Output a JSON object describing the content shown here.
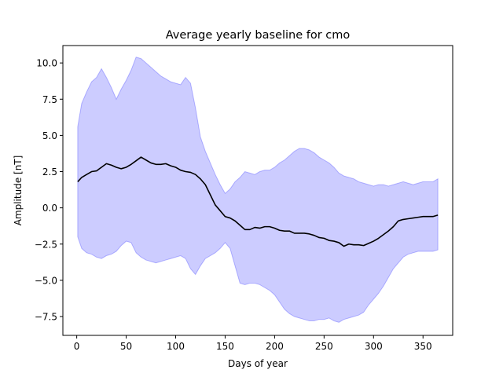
{
  "chart_data": {
    "type": "line",
    "title": "Average yearly baseline for cmo",
    "xlabel": "Days of year",
    "ylabel": "Amplitude [nT]",
    "xlim": [
      -14,
      380
    ],
    "ylim": [
      -8.8,
      11.2
    ],
    "xticks": [
      0,
      50,
      100,
      150,
      200,
      250,
      300,
      350
    ],
    "yticks": [
      -7.5,
      -5.0,
      -2.5,
      0.0,
      2.5,
      5.0,
      7.5,
      10.0
    ],
    "ytick_labels": [
      "−7.5",
      "−5.0",
      "−2.5",
      "0.0",
      "2.5",
      "5.0",
      "7.5",
      "10.0"
    ],
    "grid": false,
    "series": [
      {
        "kind": "mean-line",
        "color": "#000000",
        "x": [
          1,
          5,
          10,
          15,
          20,
          25,
          30,
          35,
          40,
          45,
          50,
          55,
          60,
          65,
          70,
          75,
          80,
          85,
          90,
          95,
          100,
          105,
          110,
          115,
          120,
          125,
          130,
          135,
          140,
          145,
          150,
          155,
          160,
          165,
          170,
          175,
          180,
          185,
          190,
          195,
          200,
          205,
          210,
          215,
          220,
          225,
          230,
          235,
          240,
          245,
          250,
          255,
          260,
          265,
          270,
          275,
          280,
          285,
          290,
          295,
          300,
          305,
          310,
          315,
          320,
          325,
          330,
          335,
          340,
          345,
          350,
          355,
          360,
          365
        ],
        "y": [
          1.8,
          2.1,
          2.3,
          2.5,
          2.55,
          2.8,
          3.05,
          2.95,
          2.8,
          2.7,
          2.8,
          3.0,
          3.25,
          3.5,
          3.3,
          3.1,
          3.0,
          3.0,
          3.05,
          2.9,
          2.8,
          2.6,
          2.5,
          2.45,
          2.3,
          2.0,
          1.6,
          0.9,
          0.2,
          -0.2,
          -0.6,
          -0.7,
          -0.9,
          -1.2,
          -1.5,
          -1.5,
          -1.35,
          -1.4,
          -1.3,
          -1.3,
          -1.4,
          -1.55,
          -1.6,
          -1.6,
          -1.75,
          -1.75,
          -1.75,
          -1.8,
          -1.9,
          -2.05,
          -2.1,
          -2.25,
          -2.3,
          -2.4,
          -2.65,
          -2.5,
          -2.55,
          -2.55,
          -2.6,
          -2.45,
          -2.3,
          -2.1,
          -1.85,
          -1.6,
          -1.3,
          -0.9,
          -0.8,
          -0.75,
          -0.7,
          -0.65,
          -0.6,
          -0.6,
          -0.6,
          -0.5
        ]
      },
      {
        "kind": "band",
        "color": "#0000ff",
        "fill_alpha": 0.2,
        "x": [
          1,
          5,
          10,
          15,
          20,
          25,
          30,
          35,
          40,
          45,
          50,
          55,
          60,
          65,
          70,
          75,
          80,
          85,
          90,
          95,
          100,
          105,
          110,
          115,
          120,
          125,
          130,
          135,
          140,
          145,
          150,
          155,
          160,
          165,
          170,
          175,
          180,
          185,
          190,
          195,
          200,
          205,
          210,
          215,
          220,
          225,
          230,
          235,
          240,
          245,
          250,
          255,
          260,
          265,
          270,
          275,
          280,
          285,
          290,
          295,
          300,
          305,
          310,
          315,
          320,
          325,
          330,
          335,
          340,
          345,
          350,
          355,
          360,
          365
        ],
        "upper": [
          5.6,
          7.2,
          8.0,
          8.7,
          9.0,
          9.6,
          9.0,
          8.3,
          7.5,
          8.2,
          8.8,
          9.5,
          10.4,
          10.3,
          10.0,
          9.7,
          9.4,
          9.1,
          8.9,
          8.7,
          8.6,
          8.5,
          9.0,
          8.6,
          6.9,
          4.9,
          3.9,
          3.1,
          2.3,
          1.6,
          1.0,
          1.3,
          1.8,
          2.1,
          2.5,
          2.4,
          2.3,
          2.5,
          2.6,
          2.6,
          2.8,
          3.1,
          3.3,
          3.6,
          3.9,
          4.1,
          4.1,
          4.0,
          3.8,
          3.5,
          3.3,
          3.1,
          2.8,
          2.4,
          2.2,
          2.1,
          2.0,
          1.8,
          1.7,
          1.6,
          1.5,
          1.6,
          1.6,
          1.5,
          1.6,
          1.7,
          1.8,
          1.7,
          1.6,
          1.7,
          1.8,
          1.8,
          1.8,
          2.0
        ],
        "lower": [
          -2.0,
          -2.8,
          -3.1,
          -3.2,
          -3.4,
          -3.5,
          -3.3,
          -3.2,
          -3.0,
          -2.6,
          -2.3,
          -2.4,
          -3.1,
          -3.4,
          -3.6,
          -3.7,
          -3.8,
          -3.7,
          -3.6,
          -3.5,
          -3.4,
          -3.3,
          -3.5,
          -4.2,
          -4.6,
          -4.0,
          -3.5,
          -3.3,
          -3.1,
          -2.8,
          -2.4,
          -2.8,
          -4.0,
          -5.2,
          -5.3,
          -5.2,
          -5.2,
          -5.3,
          -5.5,
          -5.7,
          -6.0,
          -6.5,
          -7.0,
          -7.3,
          -7.5,
          -7.6,
          -7.7,
          -7.8,
          -7.8,
          -7.7,
          -7.7,
          -7.6,
          -7.8,
          -7.9,
          -7.7,
          -7.6,
          -7.5,
          -7.4,
          -7.2,
          -6.7,
          -6.3,
          -5.9,
          -5.4,
          -4.8,
          -4.2,
          -3.8,
          -3.4,
          -3.2,
          -3.1,
          -3.0,
          -3.0,
          -3.0,
          -3.0,
          -2.9
        ]
      }
    ]
  }
}
